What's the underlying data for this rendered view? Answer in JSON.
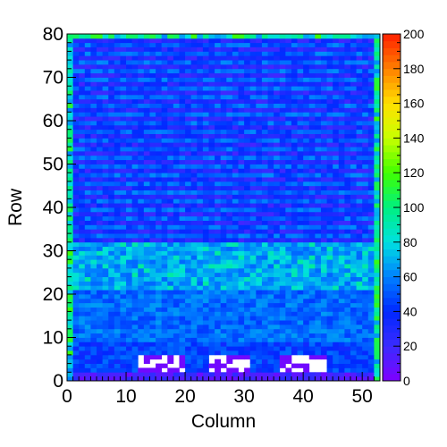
{
  "chart_data": {
    "type": "heatmap",
    "title": "",
    "xlabel": "Column",
    "ylabel": "Row",
    "xlim": [
      0,
      53
    ],
    "ylim": [
      0,
      80
    ],
    "n_columns": 53,
    "n_rows": 80,
    "x_ticks": [
      "0",
      "10",
      "20",
      "30",
      "40",
      "50"
    ],
    "y_ticks": [
      "0",
      "10",
      "20",
      "30",
      "40",
      "50",
      "60",
      "70",
      "80"
    ],
    "colorbar": {
      "min": 0,
      "max": 200,
      "ticks": [
        "0",
        "20",
        "40",
        "60",
        "80",
        "100",
        "120",
        "140",
        "160",
        "180",
        "200"
      ],
      "palette": [
        "#7f00ff",
        "#3b2bff",
        "#0028ff",
        "#0080ff",
        "#00e0e0",
        "#00f080",
        "#40ff00",
        "#c8ff00",
        "#ffe000",
        "#ff8000",
        "#ff2000"
      ]
    },
    "row_bands": [
      {
        "rows": [
          0,
          1
        ],
        "level": 15,
        "note": "bottom edge, mostly empty/low"
      },
      {
        "rows": [
          2,
          8
        ],
        "level": 45
      },
      {
        "rows": [
          9,
          20
        ],
        "level": 55
      },
      {
        "rows": [
          21,
          31
        ],
        "level": 65
      },
      {
        "rows": [
          32,
          79
        ],
        "level": 40,
        "pattern": "alternating stripes between 25 and 55"
      }
    ],
    "empty_regions": [
      {
        "cols": [
          12,
          19
        ],
        "rows": [
          2,
          5
        ]
      },
      {
        "cols": [
          24,
          30
        ],
        "rows": [
          2,
          5
        ]
      },
      {
        "cols": [
          36,
          43
        ],
        "rows": [
          2,
          5
        ]
      }
    ],
    "border_level": 90
  }
}
